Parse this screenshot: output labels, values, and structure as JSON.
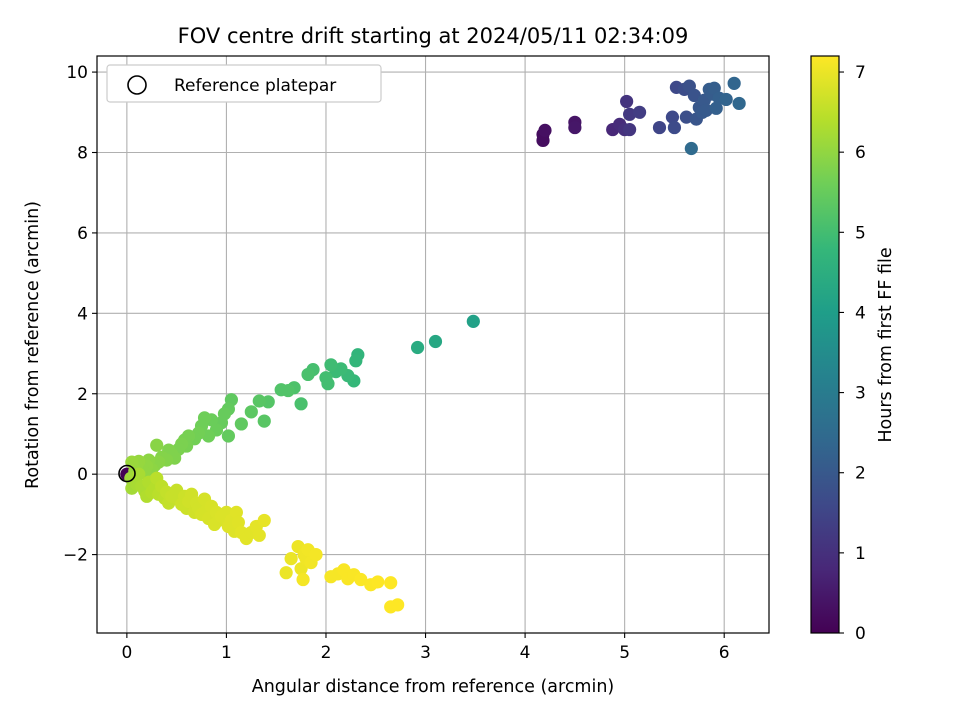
{
  "chart_data": {
    "type": "scatter",
    "title": "FOV centre drift starting at 2024/05/11 02:34:09",
    "xlabel": "Angular distance from reference (arcmin)",
    "ylabel": "Rotation from reference (arcmin)",
    "xlim": [
      -0.3,
      6.45
    ],
    "ylim": [
      -3.95,
      10.4
    ],
    "xticks": [
      0,
      1,
      2,
      3,
      4,
      5,
      6
    ],
    "xtick_labels": [
      "0",
      "1",
      "2",
      "3",
      "4",
      "5",
      "6"
    ],
    "yticks": [
      -2,
      0,
      2,
      4,
      6,
      8,
      10
    ],
    "ytick_labels": [
      "−2",
      "0",
      "2",
      "4",
      "6",
      "8",
      "10"
    ],
    "grid": true,
    "legend": {
      "placement": "top-left",
      "label": "Reference platepar",
      "marker": "open-circle"
    },
    "colorbar": {
      "label": "Hours from first FF file",
      "range": [
        0,
        7.2
      ],
      "ticks": [
        0,
        1,
        2,
        3,
        4,
        5,
        6,
        7
      ],
      "tick_labels": [
        "0",
        "1",
        "2",
        "3",
        "4",
        "5",
        "6",
        "7"
      ],
      "colormap": "viridis",
      "colormap_stops": [
        "#440154",
        "#482878",
        "#3e4989",
        "#31688e",
        "#26828e",
        "#1f9e89",
        "#35b779",
        "#6ece58",
        "#b5de2b",
        "#fde725"
      ]
    },
    "reference_point": {
      "x": 0,
      "y": 0
    },
    "point_color_scale": "hours",
    "series": [
      {
        "columns": [
          "x",
          "y",
          "hours"
        ],
        "points": [
          [
            0,
            0,
            0
          ],
          [
            4.18,
            8.45,
            0.2
          ],
          [
            4.18,
            8.3,
            0.25
          ],
          [
            4.2,
            8.55,
            0.3
          ],
          [
            4.5,
            8.75,
            0.4
          ],
          [
            4.5,
            8.62,
            0.45
          ],
          [
            4.88,
            8.57,
            0.8
          ],
          [
            4.95,
            8.7,
            0.9
          ],
          [
            5.0,
            8.57,
            1.0
          ],
          [
            5.02,
            9.27,
            1.1
          ],
          [
            5.05,
            8.57,
            1.15
          ],
          [
            5.05,
            8.95,
            1.2
          ],
          [
            5.15,
            9.0,
            1.3
          ],
          [
            5.35,
            8.62,
            1.5
          ],
          [
            5.48,
            8.88,
            1.6
          ],
          [
            5.5,
            8.62,
            1.65
          ],
          [
            5.52,
            9.62,
            1.6
          ],
          [
            5.6,
            9.57,
            1.7
          ],
          [
            5.62,
            8.88,
            1.75
          ],
          [
            5.65,
            9.65,
            1.8
          ],
          [
            5.7,
            9.42,
            1.85
          ],
          [
            5.72,
            8.83,
            1.9
          ],
          [
            5.75,
            9.12,
            1.95
          ],
          [
            5.78,
            9.0,
            2.0
          ],
          [
            5.8,
            9.3,
            2.0
          ],
          [
            5.82,
            9.05,
            2.05
          ],
          [
            5.85,
            9.57,
            2.1
          ],
          [
            5.88,
            9.45,
            2.1
          ],
          [
            5.9,
            9.6,
            2.15
          ],
          [
            5.92,
            9.1,
            2.2
          ],
          [
            5.95,
            9.35,
            2.2
          ],
          [
            6.02,
            9.32,
            2.3
          ],
          [
            6.1,
            9.72,
            2.35
          ],
          [
            6.15,
            9.22,
            2.4
          ],
          [
            5.67,
            8.1,
            2.5
          ],
          [
            3.48,
            3.8,
            4.1
          ],
          [
            3.1,
            3.3,
            4.3
          ],
          [
            2.92,
            3.15,
            4.4
          ],
          [
            2.32,
            2.97,
            4.7
          ],
          [
            2.3,
            2.82,
            4.75
          ],
          [
            2.28,
            2.32,
            4.8
          ],
          [
            2.22,
            2.45,
            4.85
          ],
          [
            2.15,
            2.62,
            4.9
          ],
          [
            2.1,
            2.55,
            4.9
          ],
          [
            2.05,
            2.72,
            4.95
          ],
          [
            2.02,
            2.25,
            5.0
          ],
          [
            2.0,
            2.4,
            5.0
          ],
          [
            1.87,
            2.6,
            5.05
          ],
          [
            1.82,
            2.48,
            5.1
          ],
          [
            1.75,
            1.75,
            5.1
          ],
          [
            1.68,
            2.15,
            5.15
          ],
          [
            1.62,
            2.08,
            5.2
          ],
          [
            1.55,
            2.1,
            5.2
          ],
          [
            1.42,
            1.8,
            5.25
          ],
          [
            1.38,
            1.32,
            5.3
          ],
          [
            1.33,
            1.82,
            5.3
          ],
          [
            1.25,
            1.55,
            5.35
          ],
          [
            1.15,
            1.25,
            5.4
          ],
          [
            1.05,
            1.85,
            5.4
          ],
          [
            1.02,
            1.62,
            5.45
          ],
          [
            1.02,
            0.95,
            5.45
          ],
          [
            0.98,
            1.5,
            5.5
          ],
          [
            0.95,
            1.28,
            5.5
          ],
          [
            0.9,
            1.1,
            5.55
          ],
          [
            0.85,
            1.35,
            5.55
          ],
          [
            0.82,
            0.95,
            5.6
          ],
          [
            0.78,
            1.4,
            5.6
          ],
          [
            0.75,
            1.2,
            5.6
          ],
          [
            0.72,
            1.02,
            5.65
          ],
          [
            0.68,
            0.88,
            5.65
          ],
          [
            0.62,
            0.95,
            5.7
          ],
          [
            0.6,
            0.7,
            5.7
          ],
          [
            0.58,
            0.85,
            5.7
          ],
          [
            0.55,
            0.75,
            5.75
          ],
          [
            0.52,
            0.62,
            5.75
          ],
          [
            0.48,
            0.4,
            5.8
          ],
          [
            0.45,
            0.5,
            5.8
          ],
          [
            0.42,
            0.6,
            5.8
          ],
          [
            0.4,
            0.35,
            5.85
          ],
          [
            0.35,
            0.42,
            5.85
          ],
          [
            0.32,
            0.3,
            5.9
          ],
          [
            0.3,
            0.72,
            5.9
          ],
          [
            0.28,
            0.22,
            5.9
          ],
          [
            0.25,
            0.12,
            5.95
          ],
          [
            0.22,
            0.35,
            5.95
          ],
          [
            0.2,
            0.2,
            6.0
          ],
          [
            0.18,
            0.05,
            6.0
          ],
          [
            0.15,
            0.15,
            6.0
          ],
          [
            0.12,
            0.32,
            6.05
          ],
          [
            0.1,
            0.22,
            6.05
          ],
          [
            0.08,
            0.08,
            6.1
          ],
          [
            0.05,
            0.3,
            6.1
          ],
          [
            0.04,
            -0.1,
            6.15
          ],
          [
            0.05,
            -0.35,
            6.2
          ],
          [
            0.08,
            -0.15,
            6.2
          ],
          [
            0.1,
            -0.25,
            6.25
          ],
          [
            0.12,
            0.0,
            6.25
          ],
          [
            0.15,
            -0.3,
            6.3
          ],
          [
            0.18,
            -0.42,
            6.3
          ],
          [
            0.2,
            -0.55,
            6.35
          ],
          [
            0.22,
            -0.2,
            6.35
          ],
          [
            0.25,
            -0.45,
            6.4
          ],
          [
            0.28,
            -0.35,
            6.4
          ],
          [
            0.3,
            -0.1,
            6.45
          ],
          [
            0.32,
            -0.5,
            6.45
          ],
          [
            0.35,
            -0.3,
            6.5
          ],
          [
            0.38,
            -0.6,
            6.5
          ],
          [
            0.4,
            -0.45,
            6.55
          ],
          [
            0.42,
            -0.72,
            6.55
          ],
          [
            0.45,
            -0.55,
            6.6
          ],
          [
            0.5,
            -0.4,
            6.6
          ],
          [
            0.52,
            -0.62,
            6.6
          ],
          [
            0.55,
            -0.75,
            6.65
          ],
          [
            0.58,
            -0.55,
            6.65
          ],
          [
            0.6,
            -0.85,
            6.65
          ],
          [
            0.62,
            -0.68,
            6.7
          ],
          [
            0.65,
            -0.5,
            6.7
          ],
          [
            0.68,
            -0.95,
            6.7
          ],
          [
            0.7,
            -0.72,
            6.72
          ],
          [
            0.72,
            -0.85,
            6.72
          ],
          [
            0.75,
            -1.0,
            6.75
          ],
          [
            0.78,
            -0.62,
            6.75
          ],
          [
            0.8,
            -0.9,
            6.75
          ],
          [
            0.82,
            -1.1,
            6.78
          ],
          [
            0.85,
            -0.8,
            6.78
          ],
          [
            0.88,
            -1.25,
            6.8
          ],
          [
            0.9,
            -0.95,
            6.8
          ],
          [
            0.92,
            -1.15,
            6.8
          ],
          [
            0.95,
            -1.05,
            6.82
          ],
          [
            1.0,
            -0.95,
            6.82
          ],
          [
            1.02,
            -1.3,
            6.85
          ],
          [
            1.05,
            -1.15,
            6.85
          ],
          [
            1.08,
            -1.42,
            6.85
          ],
          [
            1.1,
            -0.95,
            6.88
          ],
          [
            1.12,
            -1.2,
            6.88
          ],
          [
            1.15,
            -1.45,
            6.9
          ],
          [
            1.2,
            -1.6,
            6.9
          ],
          [
            1.25,
            -1.45,
            6.9
          ],
          [
            1.3,
            -1.3,
            6.92
          ],
          [
            1.33,
            -1.52,
            6.92
          ],
          [
            1.38,
            -1.15,
            6.95
          ],
          [
            1.6,
            -2.45,
            7.0
          ],
          [
            1.65,
            -2.1,
            7.0
          ],
          [
            1.72,
            -1.8,
            7.02
          ],
          [
            1.75,
            -2.35,
            7.02
          ],
          [
            1.78,
            -2.0,
            7.05
          ],
          [
            1.8,
            -2.1,
            7.05
          ],
          [
            1.82,
            -1.88,
            7.08
          ],
          [
            1.85,
            -2.2,
            7.08
          ],
          [
            1.9,
            -2.0,
            7.1
          ],
          [
            1.77,
            -2.62,
            7.1
          ],
          [
            2.05,
            -2.55,
            7.12
          ],
          [
            2.12,
            -2.48,
            7.12
          ],
          [
            2.18,
            -2.38,
            7.15
          ],
          [
            2.22,
            -2.6,
            7.15
          ],
          [
            2.28,
            -2.5,
            7.15
          ],
          [
            2.35,
            -2.62,
            7.18
          ],
          [
            2.45,
            -2.75,
            7.18
          ],
          [
            2.52,
            -2.68,
            7.2
          ],
          [
            2.65,
            -2.7,
            7.2
          ],
          [
            2.65,
            -3.3,
            7.2
          ],
          [
            2.72,
            -3.25,
            7.2
          ]
        ]
      }
    ]
  }
}
